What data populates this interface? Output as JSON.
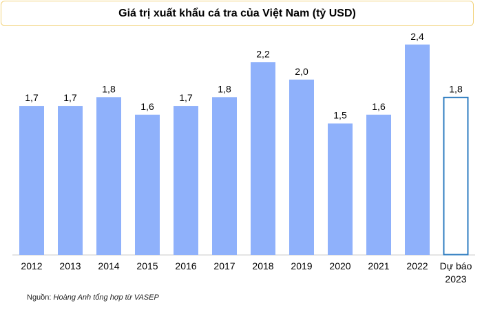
{
  "chart_data": {
    "type": "bar",
    "title": "Giá trị xuất khẩu cá tra của Việt Nam (tỷ USD)",
    "categories": [
      "2012",
      "2013",
      "2014",
      "2015",
      "2016",
      "2017",
      "2018",
      "2019",
      "2020",
      "2021",
      "2022",
      "Dự báo 2023"
    ],
    "values": [
      1.7,
      1.7,
      1.8,
      1.6,
      1.7,
      1.8,
      2.2,
      2.0,
      1.5,
      1.6,
      2.4,
      1.8
    ],
    "labels": [
      "1,7",
      "1,7",
      "1,8",
      "1,6",
      "1,7",
      "1,8",
      "2,2",
      "2,0",
      "1,5",
      "1,6",
      "2,4",
      "1,8"
    ],
    "forecast": [
      false,
      false,
      false,
      false,
      false,
      false,
      false,
      false,
      false,
      false,
      false,
      true
    ],
    "ylim": [
      0,
      2.5
    ],
    "grid": false,
    "legend": "none",
    "colors": {
      "bar": "#8fb1fb",
      "forecast_outline": "#2e7cc0",
      "axis": "#c8c8c8"
    }
  },
  "source": {
    "prefix": "Nguồn: ",
    "text": "Hoàng Anh tổng hợp từ VASEP"
  }
}
